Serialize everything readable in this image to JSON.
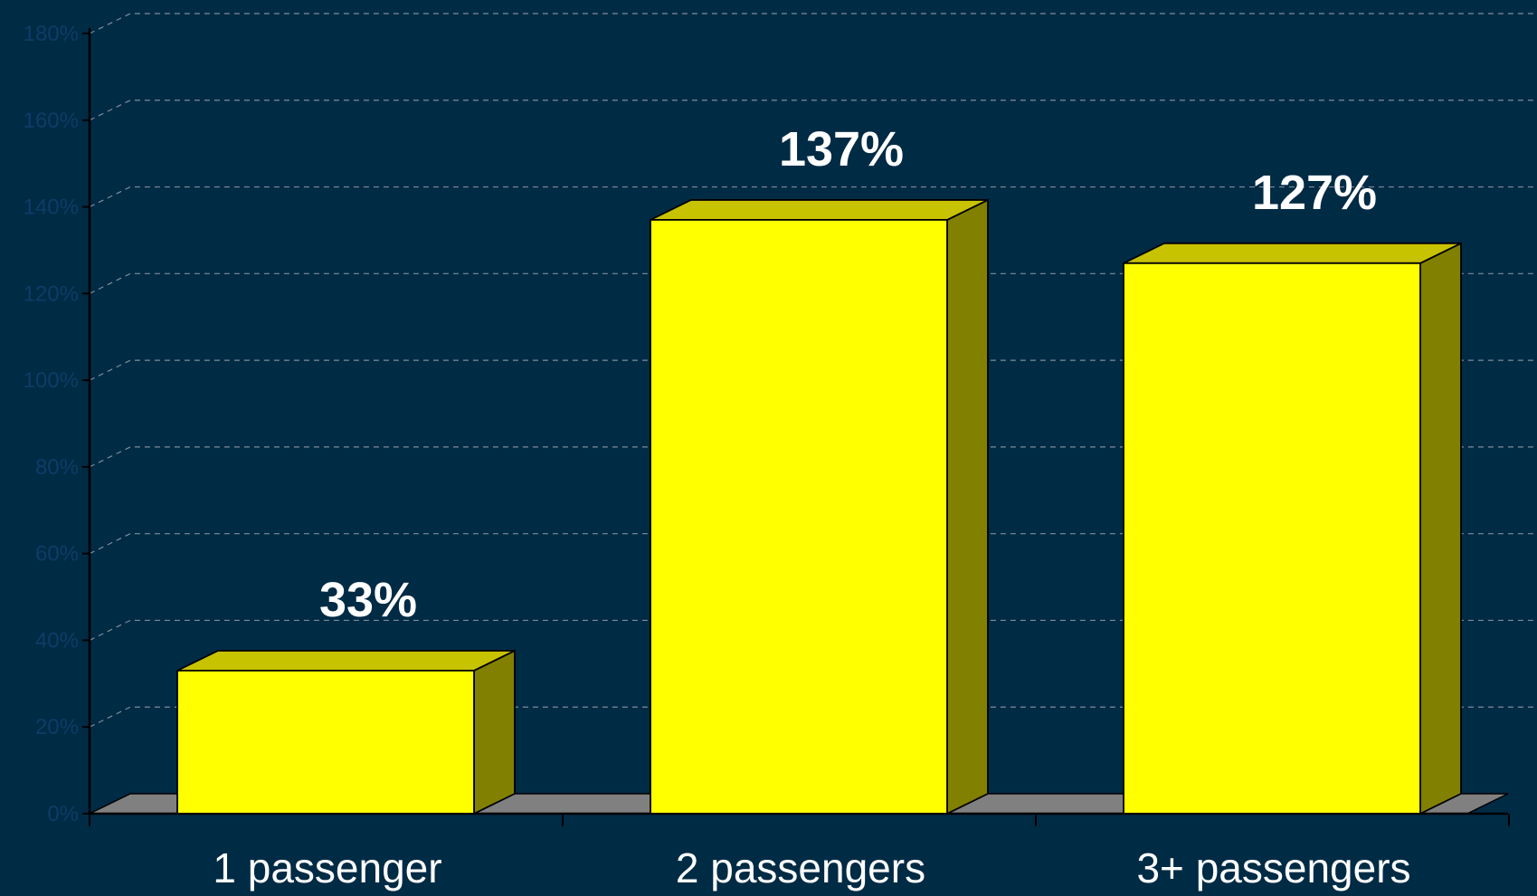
{
  "chart_data": {
    "type": "bar",
    "categories": [
      "1 passenger",
      "2 passengers",
      "3+ passengers"
    ],
    "values": [
      33,
      137,
      127
    ],
    "data_labels": [
      "33%",
      "137%",
      "127%"
    ],
    "ylim": [
      0,
      180
    ],
    "yticks": [
      0,
      20,
      40,
      60,
      80,
      100,
      120,
      140,
      160,
      180
    ],
    "ytick_labels": [
      "0%",
      "20%",
      "40%",
      "60%",
      "80%",
      "100%",
      "120%",
      "140%",
      "160%",
      "180%"
    ],
    "grid": true,
    "style": "3d",
    "colors": {
      "background": "#002b45",
      "bar_front": "#ffff00",
      "bar_top": "#c8c300",
      "bar_side": "#828000",
      "floor": "#808080",
      "grid": "#7f8c99",
      "tick_label": "#0d3d66",
      "text": "#ffffff"
    }
  }
}
